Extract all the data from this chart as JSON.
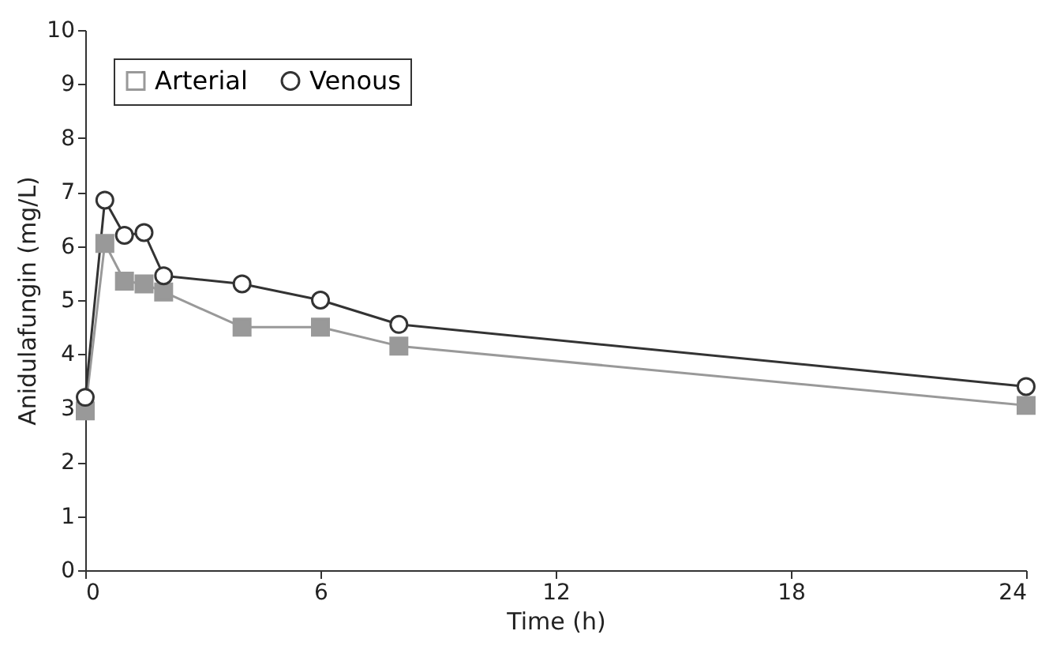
{
  "chart_data": {
    "type": "line",
    "xlabel": "Time (h)",
    "ylabel": "Anidulafungin (mg/L)",
    "x": [
      0,
      0.5,
      1,
      1.5,
      2,
      4,
      6,
      8,
      24
    ],
    "series": [
      {
        "name": "Arterial",
        "color": "#999999",
        "marker": "square",
        "values": [
          2.95,
          6.05,
          5.35,
          5.3,
          5.15,
          4.5,
          4.5,
          4.15,
          3.05
        ]
      },
      {
        "name": "Venous",
        "color": "#333333",
        "marker": "circle",
        "values": [
          3.2,
          6.85,
          6.2,
          6.25,
          5.45,
          5.3,
          5.0,
          4.55,
          3.4
        ]
      }
    ],
    "xlim": [
      0,
      24
    ],
    "xticks": [
      0,
      6,
      12,
      18,
      24
    ],
    "ylim": [
      0,
      10
    ],
    "yticks": [
      0,
      1,
      2,
      3,
      4,
      5,
      6,
      7,
      8,
      9,
      10
    ],
    "grid": false,
    "legend": "top left",
    "line_style": "solid"
  }
}
